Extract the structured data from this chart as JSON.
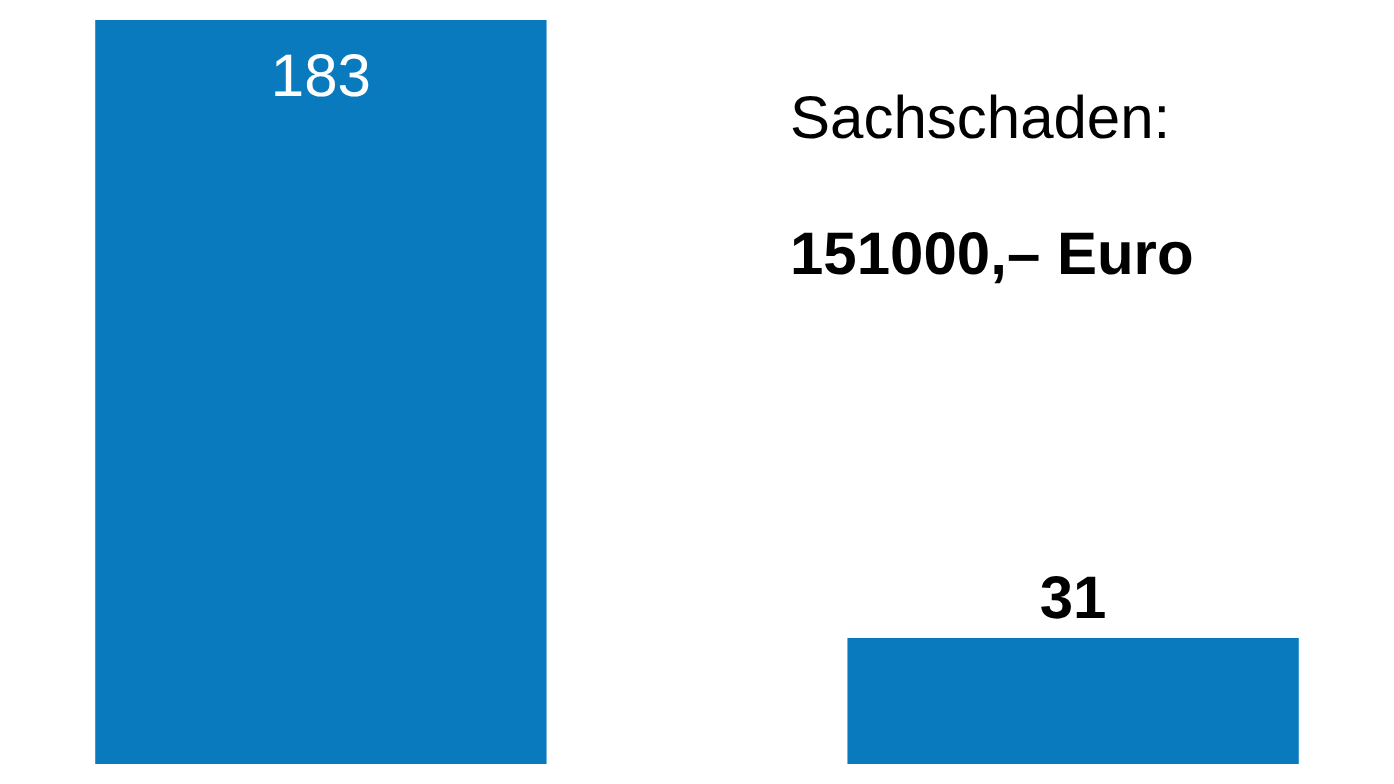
{
  "chart_data": {
    "type": "bar",
    "categories": [
      null,
      null
    ],
    "values": [
      183,
      31
    ],
    "color": "#0a7abf",
    "data_labels": true,
    "annotations": [
      "Sachschaden:",
      "151000,– Euro"
    ]
  }
}
